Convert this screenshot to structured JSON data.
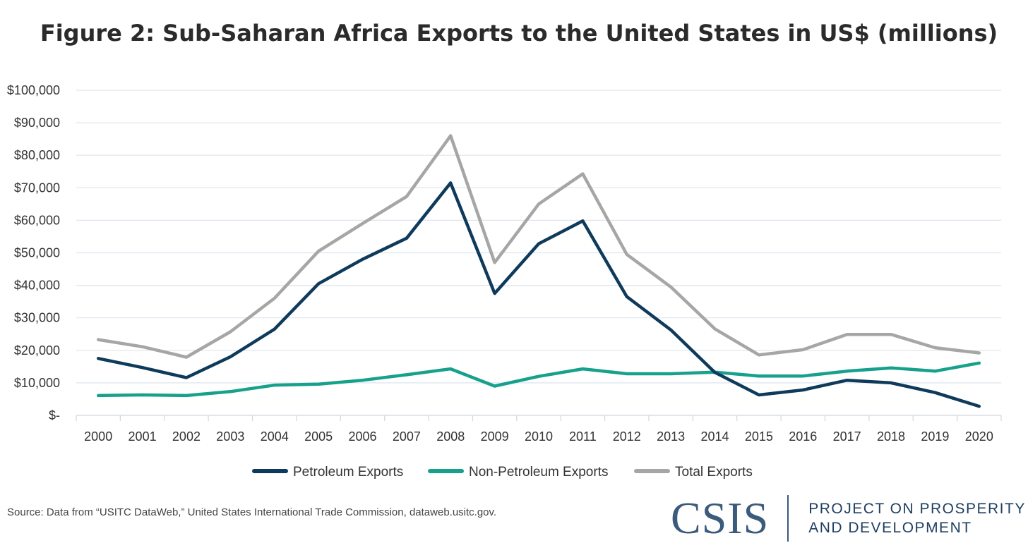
{
  "chart_data": {
    "type": "line",
    "title": "Figure 2: Sub-Saharan Africa Exports to the United States in US$ (millions)",
    "x": [
      "2000",
      "2001",
      "2002",
      "2003",
      "2004",
      "2005",
      "2006",
      "2007",
      "2008",
      "2009",
      "2010",
      "2011",
      "2012",
      "2013",
      "2014",
      "2015",
      "2016",
      "2017",
      "2018",
      "2019",
      "2020"
    ],
    "y_ticks": [
      "$-",
      "$10,000",
      "$20,000",
      "$30,000",
      "$40,000",
      "$50,000",
      "$60,000",
      "$70,000",
      "$80,000",
      "$90,000",
      "$100,000"
    ],
    "ylim": [
      0,
      100000
    ],
    "grid": true,
    "legend_position": "bottom",
    "series": [
      {
        "name": "Petroleum Exports",
        "color": "#0e3a5b",
        "values": [
          17500,
          14700,
          11600,
          18000,
          26500,
          40500,
          48000,
          54500,
          71500,
          37500,
          52800,
          59800,
          36500,
          26300,
          13200,
          6300,
          7800,
          10800,
          10000,
          7000,
          2800
        ]
      },
      {
        "name": "Non-Petroleum Exports",
        "color": "#17a18c",
        "values": [
          6100,
          6300,
          6100,
          7300,
          9300,
          9600,
          10800,
          12500,
          14300,
          9000,
          12000,
          14300,
          12800,
          12800,
          13300,
          12100,
          12100,
          13600,
          14600,
          13600,
          16100
        ]
      },
      {
        "name": "Total Exports",
        "color": "#a6a6a6",
        "values": [
          23300,
          21100,
          17900,
          25700,
          36000,
          50500,
          59000,
          67300,
          86000,
          47000,
          65000,
          74300,
          49500,
          39500,
          26600,
          18600,
          20200,
          24900,
          24900,
          20800,
          19200
        ]
      }
    ]
  },
  "footer": {
    "source": "Source: Data from “USITC DataWeb,” United States International Trade Commission, dataweb.usitc.gov.",
    "logo_mark": "CSIS",
    "logo_line1": "PROJECT ON PROSPERITY",
    "logo_line2": "AND DEVELOPMENT"
  }
}
